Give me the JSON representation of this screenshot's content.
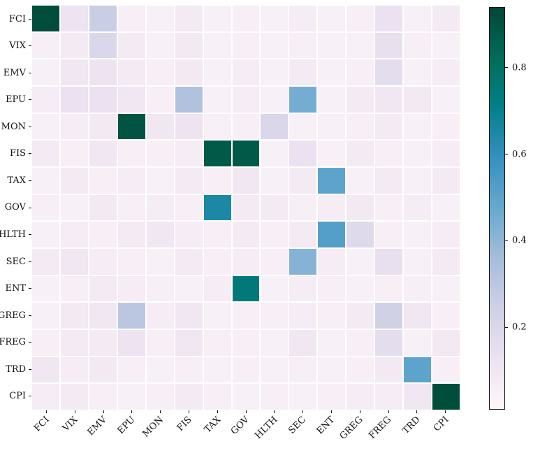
{
  "chart_data": {
    "type": "heatmap",
    "title": "",
    "xlabel": "",
    "ylabel": "",
    "x_labels": [
      "FCI",
      "VIX",
      "EMV",
      "EPU",
      "MON",
      "FIS",
      "TAX",
      "GOV",
      "HLTH",
      "SEC",
      "ENT",
      "GREG",
      "FREG",
      "TRD",
      "CPI"
    ],
    "y_labels": [
      "FCI",
      "VIX",
      "EMV",
      "EPU",
      "MON",
      "FIS",
      "TAX",
      "GOV",
      "HLTH",
      "SEC",
      "ENT",
      "GREG",
      "FREG",
      "TRD",
      "CPI"
    ],
    "values": [
      [
        0.92,
        0.12,
        0.26,
        0.06,
        0.05,
        0.08,
        0.05,
        0.06,
        0.05,
        0.07,
        0.05,
        0.06,
        0.13,
        0.05,
        0.08
      ],
      [
        0.06,
        0.08,
        0.2,
        0.08,
        0.05,
        0.09,
        0.05,
        0.06,
        0.05,
        0.06,
        0.05,
        0.05,
        0.14,
        0.06,
        0.05
      ],
      [
        0.05,
        0.1,
        0.12,
        0.08,
        0.06,
        0.09,
        0.05,
        0.07,
        0.05,
        0.08,
        0.05,
        0.06,
        0.16,
        0.05,
        0.07
      ],
      [
        0.07,
        0.13,
        0.13,
        0.1,
        0.06,
        0.33,
        0.05,
        0.07,
        0.05,
        0.45,
        0.05,
        0.08,
        0.1,
        0.09,
        0.05
      ],
      [
        0.05,
        0.07,
        0.09,
        0.9,
        0.1,
        0.12,
        0.05,
        0.06,
        0.2,
        0.05,
        0.05,
        0.06,
        0.08,
        0.05,
        0.06
      ],
      [
        0.08,
        0.06,
        0.1,
        0.06,
        0.06,
        0.07,
        0.88,
        0.88,
        0.05,
        0.13,
        0.05,
        0.08,
        0.06,
        0.05,
        0.07
      ],
      [
        0.05,
        0.08,
        0.06,
        0.07,
        0.05,
        0.08,
        0.06,
        0.1,
        0.05,
        0.08,
        0.5,
        0.05,
        0.08,
        0.05,
        0.08
      ],
      [
        0.06,
        0.05,
        0.09,
        0.06,
        0.07,
        0.06,
        0.65,
        0.08,
        0.08,
        0.06,
        0.07,
        0.09,
        0.06,
        0.07,
        0.05
      ],
      [
        0.05,
        0.07,
        0.06,
        0.08,
        0.1,
        0.07,
        0.06,
        0.08,
        0.06,
        0.08,
        0.52,
        0.18,
        0.06,
        0.05,
        0.07
      ],
      [
        0.08,
        0.1,
        0.07,
        0.06,
        0.05,
        0.08,
        0.06,
        0.07,
        0.06,
        0.42,
        0.07,
        0.05,
        0.14,
        0.05,
        0.08
      ],
      [
        0.05,
        0.06,
        0.08,
        0.07,
        0.06,
        0.05,
        0.07,
        0.75,
        0.05,
        0.07,
        0.06,
        0.05,
        0.06,
        0.06,
        0.05
      ],
      [
        0.05,
        0.09,
        0.1,
        0.3,
        0.07,
        0.1,
        0.05,
        0.06,
        0.06,
        0.07,
        0.06,
        0.08,
        0.24,
        0.1,
        0.06
      ],
      [
        0.06,
        0.08,
        0.08,
        0.12,
        0.06,
        0.1,
        0.06,
        0.06,
        0.05,
        0.1,
        0.05,
        0.06,
        0.16,
        0.05,
        0.09
      ],
      [
        0.1,
        0.07,
        0.09,
        0.06,
        0.05,
        0.06,
        0.05,
        0.06,
        0.05,
        0.06,
        0.05,
        0.06,
        0.09,
        0.5,
        0.06
      ],
      [
        0.07,
        0.08,
        0.06,
        0.05,
        0.06,
        0.08,
        0.06,
        0.05,
        0.06,
        0.05,
        0.06,
        0.07,
        0.07,
        0.1,
        0.92
      ]
    ],
    "vmin": 0.01,
    "vmax": 0.94,
    "grid": false,
    "legend_position": "colorbar-right",
    "colorbar_ticks": [
      "0.2",
      "0.4",
      "0.6",
      "0.8"
    ],
    "colorbar_tick_values": [
      0.2,
      0.4,
      0.6,
      0.8
    ],
    "colormap": "PuBuGn",
    "colormap_stops": [
      "#fff7fb",
      "#ece2f0",
      "#d0d1e6",
      "#a6bddb",
      "#67a9cf",
      "#3690c0",
      "#02818a",
      "#016c59",
      "#014636"
    ],
    "colors": {
      "background": "#ffffff",
      "tick_color": "#111111",
      "cell_gap_color": "#ffffff",
      "max_color": "#014636",
      "min_color": "#fff7fb"
    }
  }
}
